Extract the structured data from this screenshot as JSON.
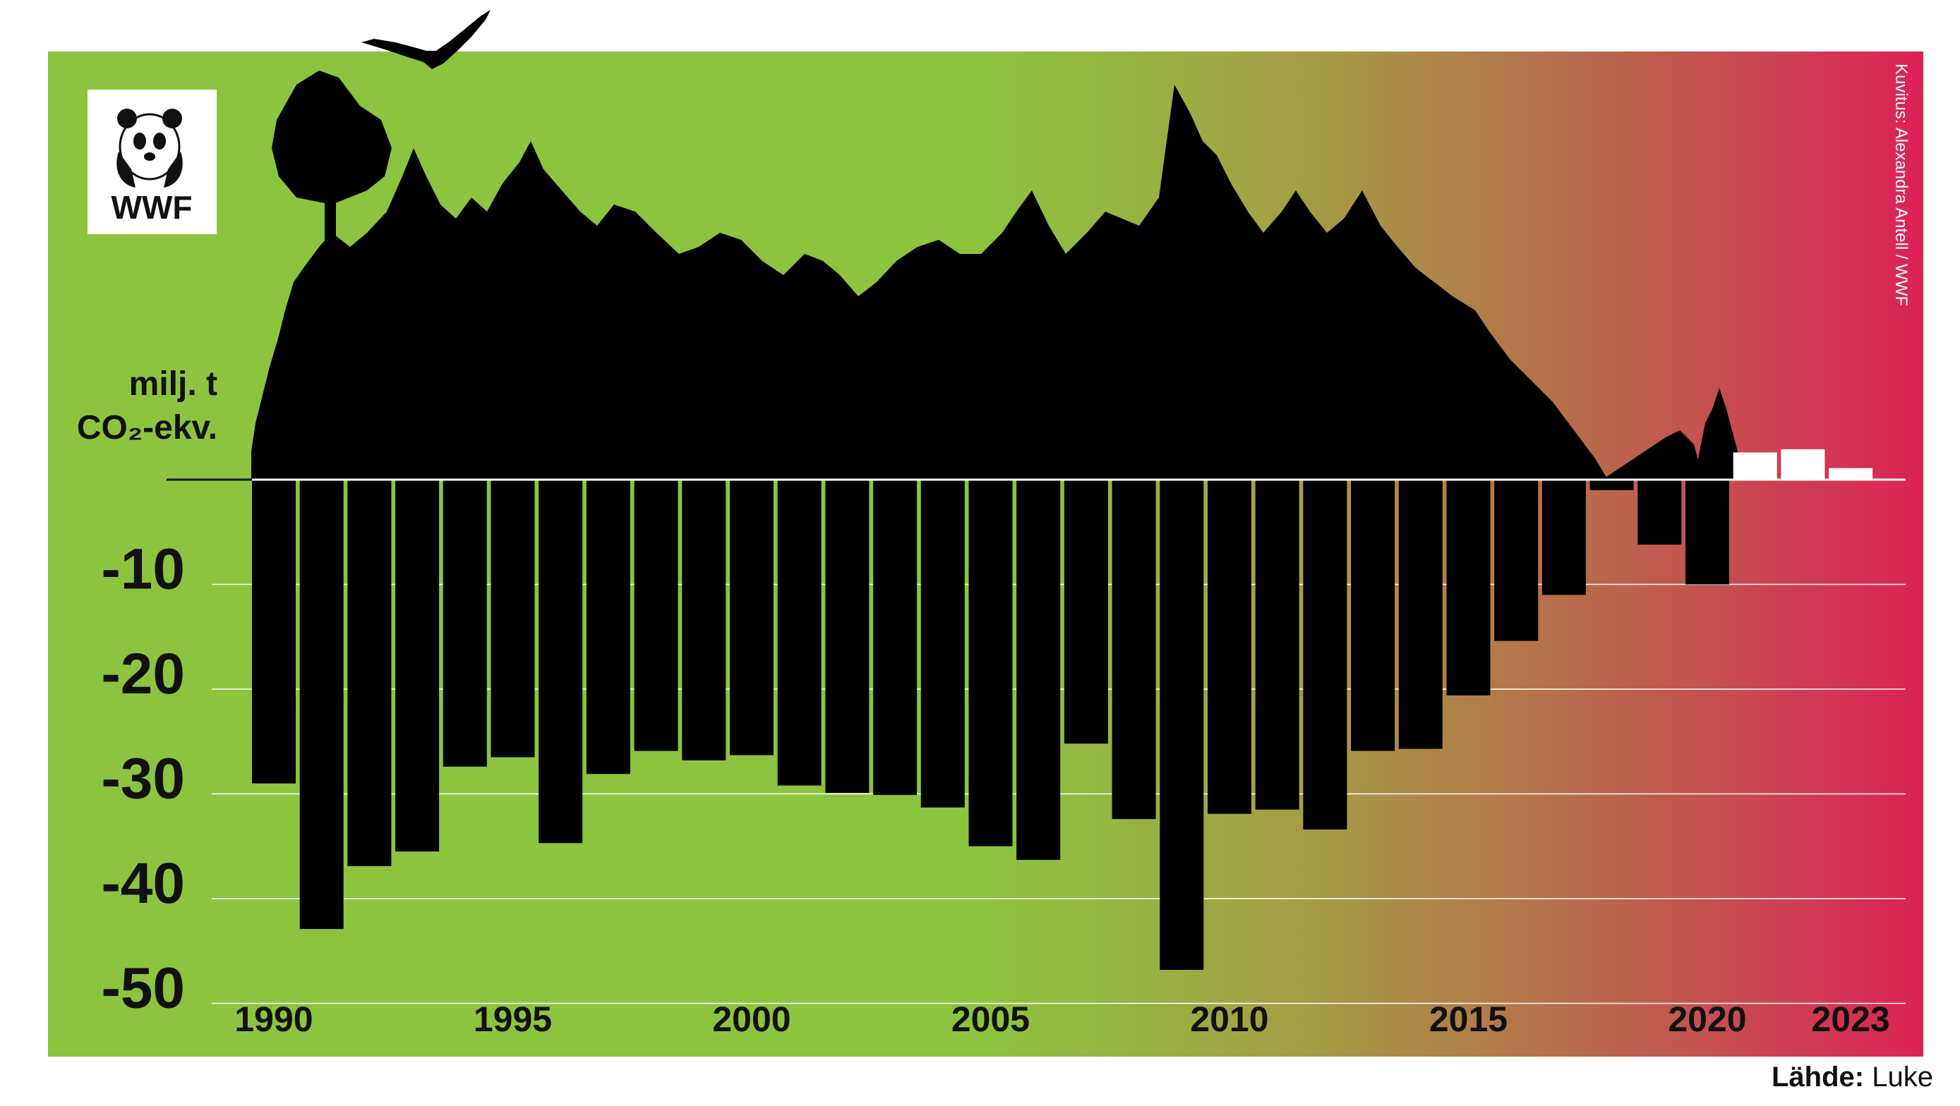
{
  "source": {
    "label": "Lähde:",
    "value": "Luke"
  },
  "credit": "Kuvitus: Alexandra Antell / WWF",
  "logo": {
    "text": "WWF",
    "icon": "panda-icon"
  },
  "colors": {
    "gradient_start": "#8cc43f",
    "gradient_mid": "#a2a147",
    "gradient_end": "#dc2255",
    "bar_negative": "#000000",
    "bar_positive": "#ffffff",
    "silhouette": "#000000"
  },
  "chart_data": {
    "type": "bar",
    "ylabel_line1": "milj. t",
    "ylabel_line2": "CO₂-ekv.",
    "ylim": [
      -52,
      0
    ],
    "yticks": [
      -10,
      -20,
      -30,
      -40,
      -50
    ],
    "ytick_labels": [
      "-10",
      "-20",
      "-30",
      "-40",
      "-50"
    ],
    "xtick_labels": [
      {
        "year": 1990,
        "label": "1990"
      },
      {
        "year": 1995,
        "label": "1995"
      },
      {
        "year": 2000,
        "label": "2000"
      },
      {
        "year": 2005,
        "label": "2005"
      },
      {
        "year": 2010,
        "label": "2010"
      },
      {
        "year": 2015,
        "label": "2015"
      },
      {
        "year": 2020,
        "label": "2020"
      },
      {
        "year": 2023,
        "label": "2023"
      }
    ],
    "grid": true,
    "categories": [
      1990,
      1991,
      1992,
      1993,
      1994,
      1995,
      1996,
      1997,
      1998,
      1999,
      2000,
      2001,
      2002,
      2003,
      2004,
      2005,
      2006,
      2007,
      2008,
      2009,
      2010,
      2011,
      2012,
      2013,
      2014,
      2015,
      2016,
      2017,
      2018,
      2019,
      2020,
      2021,
      2022,
      2023
    ],
    "values": [
      -29.0,
      -42.9,
      -36.9,
      -35.5,
      -27.4,
      -26.5,
      -34.7,
      -28.1,
      -25.9,
      -26.8,
      -26.3,
      -29.2,
      -29.9,
      -30.1,
      -31.3,
      -35.0,
      -36.3,
      -25.2,
      -32.4,
      -46.8,
      -31.9,
      -31.5,
      -33.4,
      -25.9,
      -25.7,
      -20.6,
      -15.4,
      -11.0,
      -1.0,
      -6.2,
      -10.0,
      2.6,
      2.9,
      1.1
    ]
  }
}
